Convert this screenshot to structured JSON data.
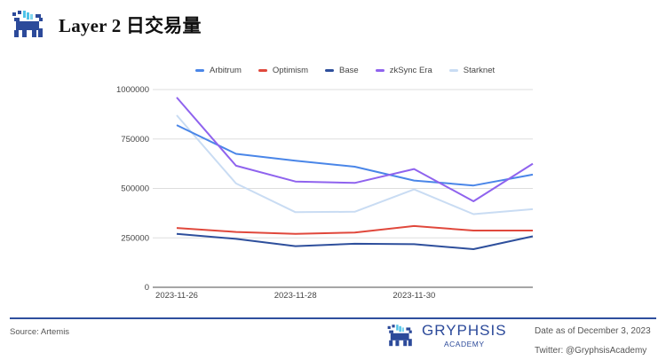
{
  "header": {
    "title": "Layer 2 日交易量"
  },
  "legend": [
    {
      "name": "Arbitrum",
      "color": "#4a86e8"
    },
    {
      "name": "Optimism",
      "color": "#e0483c"
    },
    {
      "name": "Base",
      "color": "#2e4f9c"
    },
    {
      "name": "zkSync Era",
      "color": "#8f63ee"
    },
    {
      "name": "Starknet",
      "color": "#c9dcf3"
    }
  ],
  "footer": {
    "source": "Source: Artemis",
    "brand_name": "GRYPHSIS",
    "brand_sub": "ACADEMY",
    "date_note": "Date as of December 3, 2023",
    "twitter": "Twitter: @GryphsisAcademy"
  },
  "chart_data": {
    "type": "line",
    "title": "Layer 2 日交易量",
    "xlabel": "",
    "ylabel": "",
    "x": [
      "2023-11-26",
      "2023-11-27",
      "2023-11-28",
      "2023-11-29",
      "2023-11-30",
      "2023-12-01",
      "2023-12-02"
    ],
    "x_tick_labels": [
      "2023-11-26",
      "2023-11-28",
      "2023-11-30"
    ],
    "y_tick_labels": [
      "0",
      "250000",
      "500000",
      "750000",
      "1000000"
    ],
    "ylim": [
      0,
      1000000
    ],
    "grid": true,
    "legend_position": "top",
    "series": [
      {
        "name": "Arbitrum",
        "color": "#4a86e8",
        "values": [
          820000,
          675000,
          640000,
          610000,
          540000,
          515000,
          570000
        ]
      },
      {
        "name": "Optimism",
        "color": "#e0483c",
        "values": [
          300000,
          280000,
          270000,
          277000,
          310000,
          287000,
          287000
        ]
      },
      {
        "name": "Base",
        "color": "#2e4f9c",
        "values": [
          270000,
          245000,
          208000,
          220000,
          218000,
          193000,
          258000
        ]
      },
      {
        "name": "zkSync Era",
        "color": "#8f63ee",
        "values": [
          960000,
          615000,
          535000,
          528000,
          598000,
          435000,
          625000
        ]
      },
      {
        "name": "Starknet",
        "color": "#c9dcf3",
        "values": [
          870000,
          525000,
          380000,
          382000,
          495000,
          370000,
          395000
        ]
      }
    ]
  }
}
